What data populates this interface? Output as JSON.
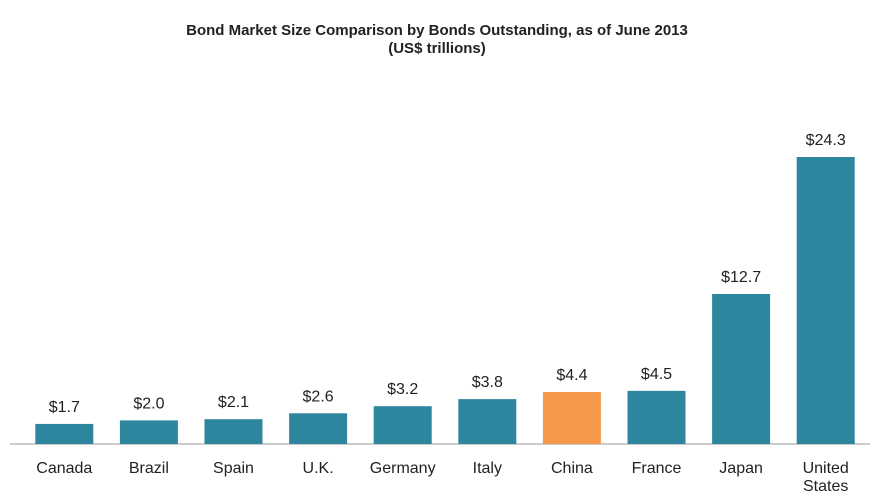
{
  "chart_data": {
    "type": "bar",
    "title": "Bond Market Size Comparison by Bonds Outstanding, as of June 2013",
    "subtitle": "(US$ trillions)",
    "categories": [
      "Canada",
      "Brazil",
      "Spain",
      "U.K.",
      "Germany",
      "Italy",
      "China",
      "France",
      "Japan",
      "United States"
    ],
    "values": [
      1.7,
      2.0,
      2.1,
      2.6,
      3.2,
      3.8,
      4.4,
      4.5,
      12.7,
      24.3
    ],
    "value_labels": [
      "$1.7",
      "$2.0",
      "$2.1",
      "$2.6",
      "$3.2",
      "$3.8",
      "$4.4",
      "$4.5",
      "$12.7",
      "$24.3"
    ],
    "colors": [
      "#2e869e",
      "#2e869e",
      "#2e869e",
      "#2e869e",
      "#2e869e",
      "#2e869e",
      "#f5984a",
      "#2e869e",
      "#2e869e",
      "#2e869e"
    ]
  }
}
